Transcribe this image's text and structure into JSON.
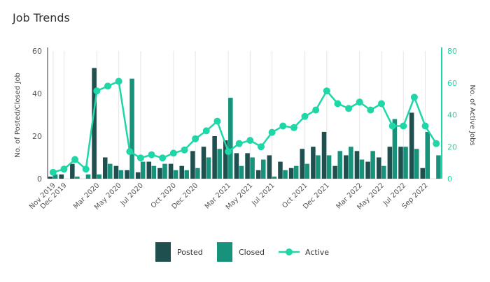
{
  "chart_data": {
    "type": "bar",
    "title": "Job Trends",
    "ylabel": "No. of Posted/Closed Job",
    "y2label": "No. of Active Jobs",
    "ylim": [
      0,
      60
    ],
    "y2lim": [
      0,
      80
    ],
    "yticks": [
      0,
      20,
      40,
      60
    ],
    "y2ticks": [
      0,
      20,
      40,
      60,
      80
    ],
    "grid": "vertical",
    "legend": "bottom",
    "categories": [
      "Nov 2019",
      "Dec 2019",
      "Jan 2020",
      "Feb 2020",
      "Mar 2020",
      "Apr 2020",
      "May 2020",
      "Jun 2020",
      "Jul 2020",
      "Aug 2020",
      "Sep 2020",
      "Oct 2020",
      "Nov 2020",
      "Dec 2020",
      "Jan 2021",
      "Feb 2021",
      "Mar 2021",
      "Apr 2021",
      "May 2021",
      "Jun 2021",
      "Jul 2021",
      "Aug 2021",
      "Sep 2021",
      "Oct 2021",
      "Nov 2021",
      "Dec 2021",
      "Jan 2022",
      "Feb 2022",
      "Mar 2022",
      "Apr 2022",
      "May 2022",
      "Jun 2022",
      "Jul 2022",
      "Aug 2022",
      "Sep 2022",
      "Oct 2022"
    ],
    "xticklabels": [
      "Nov 2019",
      "Dec 2019",
      "Mar 2020",
      "May 2020",
      "Jul 2020",
      "Oct 2020",
      "Dec 2020",
      "Mar 2021",
      "May 2021",
      "Jul 2021",
      "Oct 2021",
      "Dec 2021",
      "Mar 2022",
      "May 2022",
      "Jul 2022",
      "Sep 2022"
    ],
    "series": [
      {
        "name": "Posted",
        "type": "bar",
        "axis": "left",
        "color": "#1f4f4f",
        "values": [
          1,
          2,
          7,
          0,
          52,
          10,
          6,
          4,
          3,
          8,
          5,
          7,
          6,
          13,
          15,
          20,
          18,
          12,
          12,
          4,
          11,
          8,
          5,
          14,
          15,
          22,
          6,
          11,
          13,
          8,
          10,
          15,
          15,
          31,
          5,
          0
        ]
      },
      {
        "name": "Closed",
        "type": "bar",
        "axis": "left",
        "color": "#16937a",
        "values": [
          2,
          0,
          1,
          2,
          2,
          7,
          4,
          47,
          8,
          6,
          7,
          4,
          4,
          5,
          10,
          14,
          38,
          6,
          10,
          9,
          1,
          4,
          6,
          7,
          11,
          11,
          13,
          15,
          9,
          13,
          6,
          28,
          15,
          14,
          22,
          11
        ]
      },
      {
        "name": "Active",
        "type": "line",
        "axis": "right",
        "color": "#1fd6a6",
        "values": [
          4,
          6,
          12,
          6,
          55,
          58,
          61,
          17,
          13,
          15,
          13,
          16,
          18,
          25,
          30,
          36,
          17,
          22,
          24,
          20,
          29,
          33,
          32,
          39,
          43,
          55,
          47,
          44,
          48,
          43,
          47,
          33,
          33,
          51,
          33,
          22
        ]
      }
    ]
  }
}
